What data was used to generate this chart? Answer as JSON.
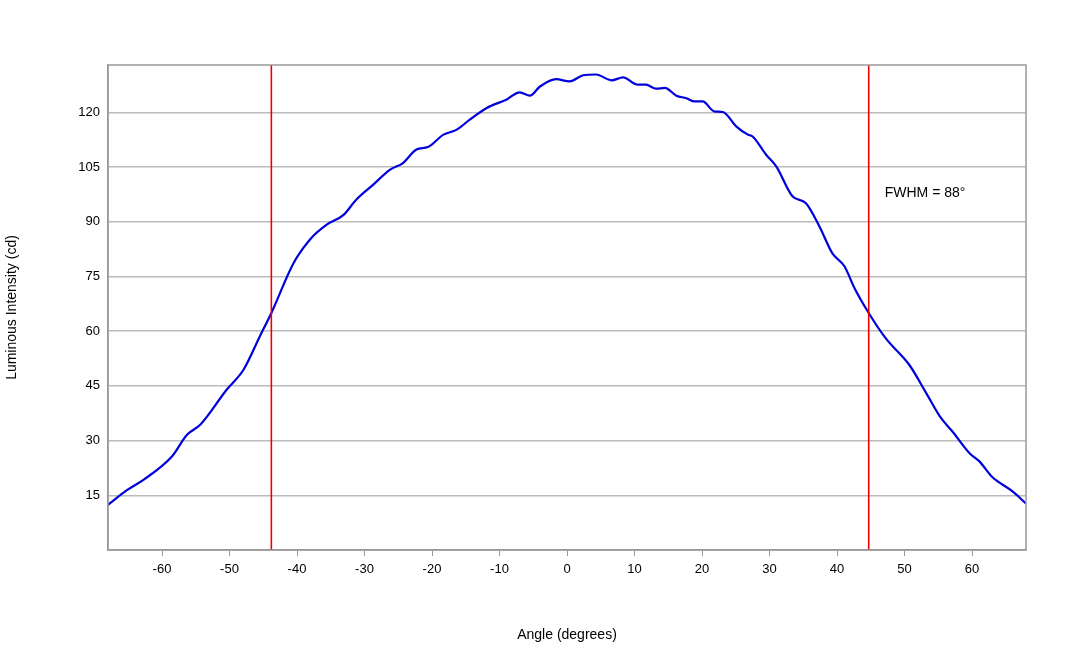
{
  "chart_data": {
    "type": "line",
    "xlabel": "Angle (degrees)",
    "ylabel": "Luminous Intensity (cd)",
    "x": [
      -68,
      -65.2,
      -62.7,
      -58.5,
      -56.3,
      -54.3,
      -50.4,
      -47.9,
      -45.5,
      -43.8,
      -40.5,
      -38.1,
      -35.6,
      -33.1,
      -31.2,
      -28.7,
      -26.2,
      -24.3,
      -22.3,
      -20.6,
      -18.3,
      -16.4,
      -14.4,
      -11.9,
      -9,
      -7,
      -5.5,
      -4,
      -1.6,
      0.4,
      2.4,
      4.3,
      6.6,
      8.3,
      10.5,
      11.7,
      13.2,
      14.5,
      16.2,
      17.7,
      18.9,
      20.1,
      21.8,
      23.1,
      25.1,
      26.8,
      27.5,
      29.5,
      31,
      33.4,
      35.4,
      37.4,
      39.3,
      41.1,
      42.6,
      44.7,
      47.2,
      50.7,
      53.2,
      55.4,
      57.1,
      59.6,
      61.1,
      63,
      66,
      67.9
    ],
    "series": [
      {
        "color": "#0000dd",
        "values": [
          12.4,
          16.4,
          19.3,
          25.7,
          31.6,
          34.4,
          44,
          49.5,
          58.6,
          65,
          78.7,
          85.1,
          89.2,
          91.9,
          96.1,
          100.2,
          104.3,
          106.1,
          109.8,
          110.5,
          113.9,
          115.2,
          118,
          121.2,
          123.5,
          125.5,
          124.6,
          127.1,
          129.1,
          128.5,
          130.2,
          130.4,
          128.8,
          129.6,
          127.6,
          127.6,
          126.5,
          126.7,
          124.6,
          123.9,
          123,
          123,
          120.3,
          120.1,
          116.1,
          113.9,
          113.4,
          108.4,
          105.2,
          97,
          95.1,
          88.7,
          81.4,
          77.8,
          71.8,
          65,
          58.1,
          50.8,
          43.1,
          36.2,
          32.5,
          26.6,
          24.3,
          20,
          16.1,
          12.9
        ]
      }
    ],
    "xlim": [
      -68,
      68
    ],
    "xticks": [
      -60,
      -50,
      -40,
      -30,
      -20,
      -10,
      0,
      10,
      20,
      30,
      40,
      50,
      60
    ],
    "ylim": [
      0,
      133
    ],
    "yticks": [
      15,
      30,
      45,
      60,
      75,
      90,
      105,
      120
    ],
    "ref_lines": [
      {
        "axis": "x",
        "value": -43.8,
        "color": "#ee0000"
      },
      {
        "axis": "x",
        "value": 44.7,
        "color": "#ee0000"
      }
    ],
    "annotations": [
      "FWHM = 88°"
    ],
    "grid": "y",
    "legend": false,
    "marker": "none",
    "line_style": "solid"
  }
}
